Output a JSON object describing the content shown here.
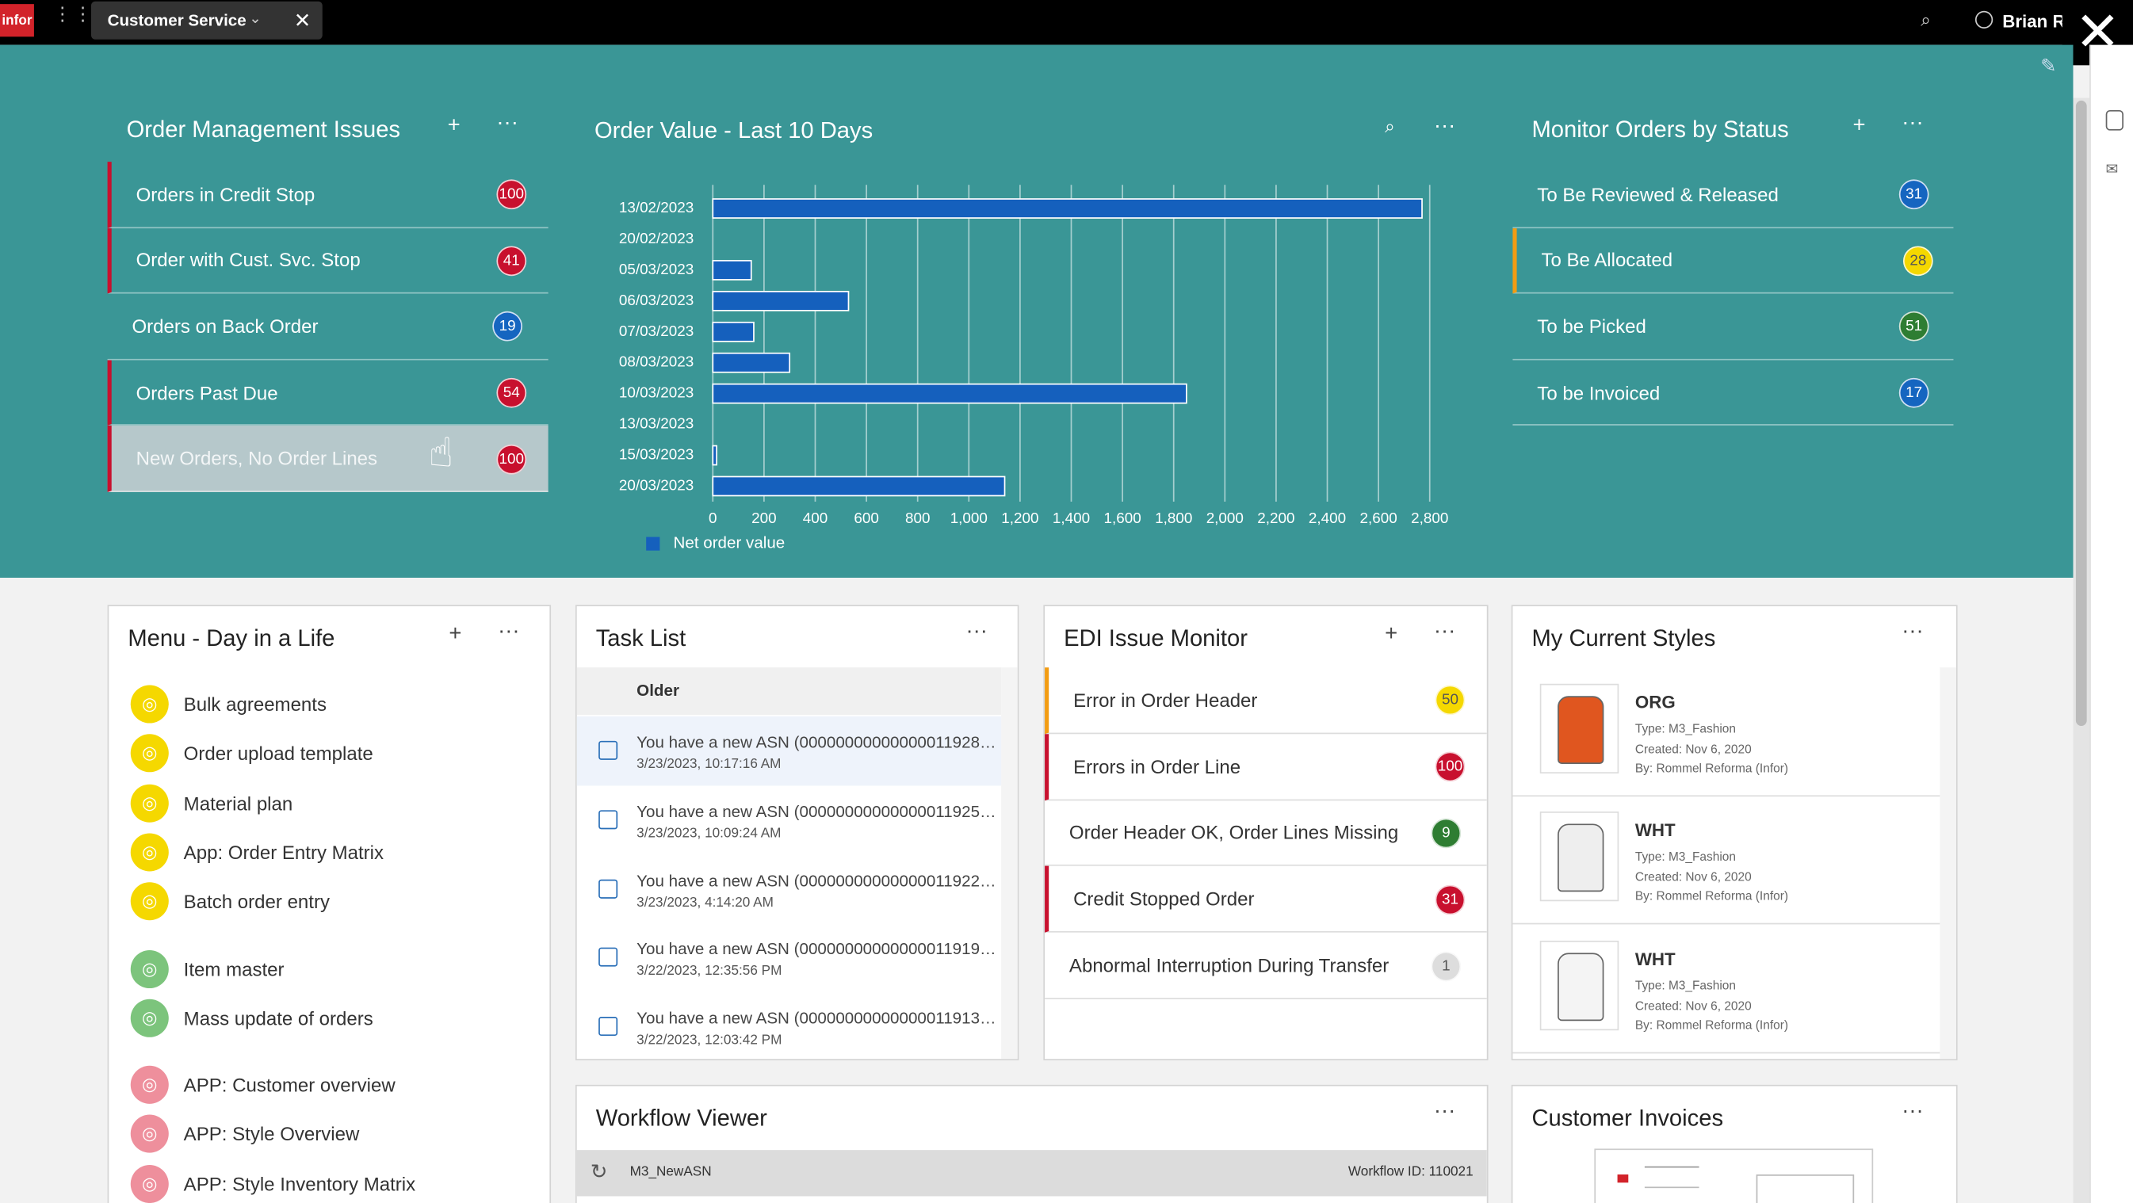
{
  "topbar": {
    "logo": "infor",
    "tab": "Customer Service",
    "user": "Brian R"
  },
  "order_management": {
    "title": "Order Management Issues",
    "items": [
      {
        "label": "Orders in Credit Stop",
        "count": 100,
        "color": "#c8102e",
        "accent": "#c8102e"
      },
      {
        "label": "Order with Cust. Svc. Stop",
        "count": 41,
        "color": "#c8102e",
        "accent": "#c8102e"
      },
      {
        "label": "Orders on Back Order",
        "count": 19,
        "color": "#1565c0",
        "accent": null
      },
      {
        "label": "Orders Past Due",
        "count": 54,
        "color": "#c8102e",
        "accent": "#c8102e"
      },
      {
        "label": "New Orders, No Order Lines",
        "count": 100,
        "color": "#c8102e",
        "accent": "#c8102e"
      }
    ]
  },
  "chart_data": {
    "type": "bar",
    "title": "Order Value - Last 10 Days",
    "categories": [
      "13/02/2023",
      "20/02/2023",
      "05/03/2023",
      "06/03/2023",
      "07/03/2023",
      "08/03/2023",
      "10/03/2023",
      "13/03/2023",
      "15/03/2023",
      "20/03/2023"
    ],
    "series": [
      {
        "name": "Net order value",
        "color": "#1560bd",
        "values": [
          2770,
          0,
          150,
          530,
          160,
          300,
          1850,
          0,
          15,
          1140
        ]
      }
    ],
    "xlim": [
      0,
      2800
    ],
    "xticks": [
      0,
      200,
      400,
      600,
      800,
      {
        "value": 1000,
        "label": "1,000"
      },
      {
        "value": 1200,
        "label": "1,200"
      },
      {
        "value": 1400,
        "label": "1,400"
      },
      {
        "value": 1600,
        "label": "1,600"
      },
      {
        "value": 1800,
        "label": "1,800"
      },
      {
        "value": 2000,
        "label": "2,000"
      },
      {
        "value": 2200,
        "label": "2,200"
      },
      {
        "value": 2400,
        "label": "2,400"
      },
      {
        "value": 2600,
        "label": "2,600"
      },
      {
        "value": 2800,
        "label": "2,800"
      }
    ],
    "grid": true,
    "legend": "bottom-left"
  },
  "monitor_orders": {
    "title": "Monitor Orders by Status",
    "items": [
      {
        "label": "To Be Reviewed & Released",
        "count": 31,
        "color": "#1565c0",
        "accent": null
      },
      {
        "label": "To Be Allocated",
        "count": 28,
        "color": "#f5d800",
        "accent": "#f39c12"
      },
      {
        "label": "To be Picked",
        "count": 51,
        "color": "#2e7d32",
        "accent": null
      },
      {
        "label": "To be Invoiced",
        "count": 17,
        "color": "#1565c0",
        "accent": null
      }
    ]
  },
  "menu": {
    "title": "Menu - Day in a Life",
    "groups": [
      {
        "color": "#f5d800",
        "items": [
          "Bulk agreements",
          "Order upload template",
          "Material plan",
          "App: Order Entry Matrix",
          "Batch order entry"
        ]
      },
      {
        "color": "#7cc47c",
        "items": [
          "Item master",
          "Mass update of orders"
        ]
      },
      {
        "color": "#ee8f9c",
        "items": [
          "APP: Customer overview",
          "APP: Style Overview",
          "APP: Style Inventory Matrix"
        ]
      }
    ]
  },
  "task_list": {
    "title": "Task List",
    "group": "Older",
    "items": [
      {
        "text": "You have a new ASN (00000000000000011928…",
        "time": "3/23/2023, 10:17:16 AM"
      },
      {
        "text": "You have a new ASN (00000000000000011925…",
        "time": "3/23/2023, 10:09:24 AM"
      },
      {
        "text": "You have a new ASN (00000000000000011922…",
        "time": "3/23/2023, 4:14:20 AM"
      },
      {
        "text": "You have a new ASN (00000000000000011919…",
        "time": "3/22/2023, 12:35:56 PM"
      },
      {
        "text": "You have a new ASN (00000000000000011913…",
        "time": "3/22/2023, 12:03:42 PM"
      }
    ]
  },
  "edi_monitor": {
    "title": "EDI Issue Monitor",
    "items": [
      {
        "label": "Error in Order Header",
        "count": 50,
        "color": "#f5d800",
        "accent": "#f39c12"
      },
      {
        "label": "Errors in Order Line",
        "count": 100,
        "color": "#c8102e",
        "accent": "#c8102e"
      },
      {
        "label": "Order Header OK, Order Lines Missing",
        "count": 9,
        "color": "#2e7d32",
        "accent": null
      },
      {
        "label": "Credit Stopped Order",
        "count": 31,
        "color": "#c8102e",
        "accent": "#c8102e"
      },
      {
        "label": "Abnormal Interruption During Transfer",
        "count": 1,
        "color": "#dddddd",
        "accent": null
      }
    ]
  },
  "styles": {
    "title": "My Current Styles",
    "items": [
      {
        "code": "ORG",
        "type": "Type: M3_Fashion",
        "created": "Created: Nov 6, 2020",
        "by": "By: Rommel Reforma (Infor)"
      },
      {
        "code": "WHT",
        "type": "Type: M3_Fashion",
        "created": "Created: Nov 6, 2020",
        "by": "By: Rommel Reforma (Infor)"
      },
      {
        "code": "WHT",
        "type": "Type: M3_Fashion",
        "created": "Created: Nov 6, 2020",
        "by": "By: Rommel Reforma (Infor)"
      }
    ]
  },
  "workflow": {
    "title": "Workflow Viewer",
    "name": "M3_NewASN",
    "id": "Workflow ID: 110021"
  },
  "invoices": {
    "title": "Customer Invoices"
  }
}
